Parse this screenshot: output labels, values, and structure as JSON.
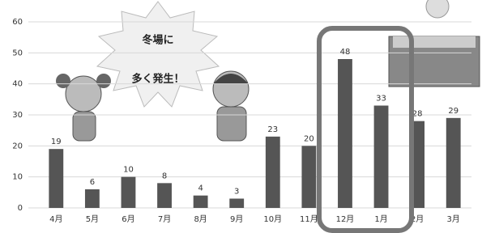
{
  "chart_data": {
    "type": "bar",
    "categories": [
      "4月",
      "5月",
      "6月",
      "7月",
      "8月",
      "9月",
      "10月",
      "11月",
      "12月",
      "1月",
      "2月",
      "3月"
    ],
    "values": [
      19,
      6,
      10,
      8,
      4,
      3,
      23,
      20,
      48,
      33,
      28,
      29
    ],
    "color": "#555555",
    "ylim": [
      0,
      60
    ],
    "yticks": [
      0,
      10,
      20,
      30,
      40,
      50,
      60
    ],
    "grid": true,
    "annotations": [
      "冬場に",
      "多く発生！"
    ]
  }
}
